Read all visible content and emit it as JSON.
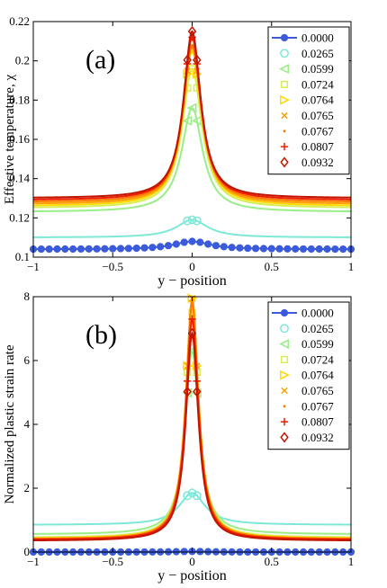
{
  "chart_data": [
    {
      "type": "line",
      "panel_label": "(a)",
      "xlabel": "y − position",
      "ylabel": "Effective temperature, χ",
      "xlim": [
        -1,
        1
      ],
      "ylim": [
        0.1,
        0.22
      ],
      "xticks": [
        "−1",
        "−0.5",
        "0",
        "0.5",
        "1"
      ],
      "yticks": [
        "0.1",
        "0.12",
        "0.14",
        "0.16",
        "0.18",
        "0.2",
        "0.22"
      ],
      "legend_position": "top-right",
      "series": [
        {
          "name": "0.0000",
          "color": "#3b5bdb",
          "marker": "circle-filled",
          "baseline": 0.104,
          "peak": 0.108,
          "width": 0.14
        },
        {
          "name": "0.0265",
          "color": "#7ee8d8",
          "marker": "circle",
          "baseline": 0.11,
          "peak": 0.119,
          "width": 0.12
        },
        {
          "name": "0.0599",
          "color": "#99ee88",
          "marker": "triangle-left",
          "baseline": 0.123,
          "peak": 0.176,
          "width": 0.08
        },
        {
          "name": "0.0724",
          "color": "#d6ee55",
          "marker": "square",
          "baseline": 0.125,
          "peak": 0.196,
          "width": 0.075
        },
        {
          "name": "0.0764",
          "color": "#ffd800",
          "marker": "triangle-right",
          "baseline": 0.126,
          "peak": 0.205,
          "width": 0.072
        },
        {
          "name": "0.0765",
          "color": "#ffa000",
          "marker": "x",
          "baseline": 0.127,
          "peak": 0.207,
          "width": 0.071
        },
        {
          "name": "0.0767",
          "color": "#ff7a00",
          "marker": "dot",
          "baseline": 0.128,
          "peak": 0.208,
          "width": 0.07
        },
        {
          "name": "0.0807",
          "color": "#ee1c00",
          "marker": "plus",
          "baseline": 0.129,
          "peak": 0.212,
          "width": 0.068
        },
        {
          "name": "0.0932",
          "color": "#c01600",
          "marker": "diamond",
          "baseline": 0.13,
          "peak": 0.215,
          "width": 0.066
        }
      ]
    },
    {
      "type": "line",
      "panel_label": "(b)",
      "xlabel": "y − position",
      "ylabel": "Normalized plastic strain rate",
      "xlim": [
        -1,
        1
      ],
      "ylim": [
        0,
        8
      ],
      "xticks": [
        "−1",
        "−0.5",
        "0",
        "0.5",
        "1"
      ],
      "yticks": [
        "0",
        "2",
        "4",
        "6",
        "8"
      ],
      "legend_position": "top-right",
      "series": [
        {
          "name": "0.0000",
          "color": "#3b5bdb",
          "marker": "circle-filled",
          "baseline": 0.0,
          "peak": 0.02,
          "width": 0.1
        },
        {
          "name": "0.0265",
          "color": "#7ee8d8",
          "marker": "circle",
          "baseline": 0.85,
          "peak": 1.85,
          "width": 0.1
        },
        {
          "name": "0.0599",
          "color": "#99ee88",
          "marker": "triangle-left",
          "baseline": 0.55,
          "peak": 6.3,
          "width": 0.055
        },
        {
          "name": "0.0724",
          "color": "#d6ee55",
          "marker": "square",
          "baseline": 0.45,
          "peak": 7.5,
          "width": 0.05
        },
        {
          "name": "0.0764",
          "color": "#ffd800",
          "marker": "triangle-right",
          "baseline": 0.42,
          "peak": 7.95,
          "width": 0.048
        },
        {
          "name": "0.0765",
          "color": "#ffa000",
          "marker": "x",
          "baseline": 0.41,
          "peak": 7.95,
          "width": 0.048
        },
        {
          "name": "0.0767",
          "color": "#ff7a00",
          "marker": "dot",
          "baseline": 0.4,
          "peak": 7.8,
          "width": 0.048
        },
        {
          "name": "0.0807",
          "color": "#ee1c00",
          "marker": "plus",
          "baseline": 0.38,
          "peak": 7.3,
          "width": 0.048
        },
        {
          "name": "0.0932",
          "color": "#c01600",
          "marker": "diamond",
          "baseline": 0.35,
          "peak": 6.85,
          "width": 0.048
        }
      ]
    }
  ]
}
